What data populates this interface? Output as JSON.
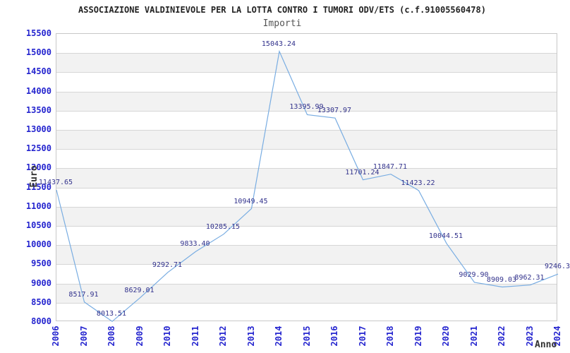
{
  "header": {
    "title": "ASSOCIAZIONE VALDINIEVOLE PER LA LOTTA CONTRO I TUMORI ODV/ETS (c.f.91005560478)",
    "subtitle": "Importi"
  },
  "axes": {
    "y_title": "Euro",
    "x_title": "Anno",
    "y_ticks": [
      "15500",
      "15000",
      "14500",
      "14000",
      "13500",
      "13000",
      "12500",
      "12000",
      "11500",
      "11000",
      "10500",
      "10000",
      "9500",
      "9000",
      "8500",
      "8000"
    ],
    "x_ticks": [
      "2006",
      "2007",
      "2008",
      "2009",
      "2010",
      "2011",
      "2012",
      "2013",
      "2014",
      "2015",
      "2016",
      "2017",
      "2018",
      "2019",
      "2020",
      "2021",
      "2022",
      "2023",
      "2024"
    ]
  },
  "chart_data": {
    "type": "line",
    "title": "ASSOCIAZIONE VALDINIEVOLE PER LA LOTTA CONTRO I TUMORI ODV/ETS (c.f.91005560478)",
    "subtitle": "Importi",
    "xlabel": "Anno",
    "ylabel": "Euro",
    "x": [
      2006,
      2007,
      2008,
      2009,
      2010,
      2011,
      2012,
      2013,
      2014,
      2015,
      2016,
      2017,
      2018,
      2019,
      2020,
      2021,
      2022,
      2023,
      2024
    ],
    "values": [
      11437.65,
      8517.91,
      8013.51,
      8629.01,
      9292.71,
      9833.4,
      10285.15,
      10949.45,
      15043.24,
      13395.99,
      13307.97,
      11701.24,
      11847.71,
      11423.22,
      10044.51,
      9029.9,
      8909.03,
      8962.31,
      9246.3
    ],
    "point_labels": [
      "11437.65",
      "8517.91",
      "8013.51",
      "8629.01",
      "9292.71",
      "9833.40",
      "10285.15",
      "10949.45",
      "15043.24",
      "13395.99",
      "13307.97",
      "11701.24",
      "11847.71",
      "11423.22",
      "10044.51",
      "9029.90",
      "8909.03",
      "8962.31",
      "9246.3"
    ],
    "ylim": [
      8000,
      15500
    ],
    "y_step": 500,
    "grid": true,
    "legend_position": "none",
    "band_color": "#f2f2f2",
    "series_color": "#79ade2"
  },
  "colors": {
    "tick_label": "#2525cf",
    "point_label": "#32328c",
    "grid": "#d6d6d6",
    "band": "#f2f2f2",
    "line": "#79ade2",
    "title": "#222222",
    "subtitle": "#555555",
    "axis_title": "#333333"
  }
}
